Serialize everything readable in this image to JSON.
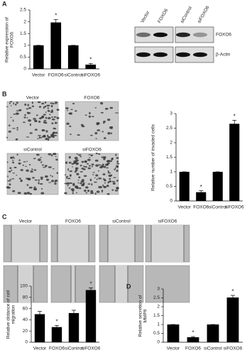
{
  "chart_data": [
    {
      "type": "bar",
      "panel": "A",
      "y_label": "Relative expression of FOXO6",
      "categories": [
        "Vector",
        "FOXO6",
        "siControl",
        "siFOXO6"
      ],
      "values": [
        1,
        1.97,
        1,
        0.18
      ],
      "errors": [
        0,
        0.12,
        0,
        0.05
      ],
      "markers": [
        {
          "index": 1,
          "label": "*"
        },
        {
          "index": 3,
          "label": "*"
        }
      ],
      "color": "#000000",
      "ylim": [
        0,
        2.5
      ],
      "yticks": [
        0,
        0.5,
        1,
        1.5,
        2,
        2.5
      ]
    },
    {
      "type": "bar",
      "panel": "B",
      "y_label": "Relative number of invaded cells",
      "categories": [
        "Vector",
        "FOXO6",
        "siControl",
        "siFOXO6"
      ],
      "values": [
        1,
        0.3,
        1,
        2.65
      ],
      "errors": [
        0,
        0.05,
        0,
        0.12
      ],
      "markers": [
        {
          "index": 1,
          "label": "*"
        },
        {
          "index": 3,
          "label": "*"
        }
      ],
      "color": "#000000",
      "ylim": [
        0,
        3
      ],
      "yticks": [
        0,
        0.5,
        1,
        1.5,
        2,
        2.5,
        3
      ]
    },
    {
      "type": "bar",
      "panel": "C",
      "y_label": "Relative distance of cell migration",
      "categories": [
        "Vector",
        "FOXO6",
        "siControl",
        "siFOXO6"
      ],
      "values": [
        50,
        27,
        52,
        93
      ],
      "errors": [
        5,
        3,
        5,
        4
      ],
      "markers": [
        {
          "index": 1,
          "label": "*"
        },
        {
          "index": 3,
          "label": "*"
        }
      ],
      "color": "#000000",
      "ylim": [
        0,
        100
      ],
      "yticks": [
        0,
        20,
        40,
        60,
        80,
        100
      ]
    },
    {
      "type": "bar",
      "panel": "D",
      "y_label": "Relative secretion of MMP9",
      "categories": [
        "Vector",
        "FOXO6",
        "siControl",
        "siFOXO6"
      ],
      "values": [
        1,
        0.28,
        1,
        2.52
      ],
      "errors": [
        0,
        0.04,
        0,
        0.12
      ],
      "markers": [
        {
          "index": 1,
          "label": "*"
        },
        {
          "index": 3,
          "label": "*"
        }
      ],
      "color": "#000000",
      "ylim": [
        0,
        3
      ],
      "yticks": [
        0,
        0.5,
        1,
        1.5,
        2,
        2.5,
        3
      ]
    }
  ],
  "blot": {
    "lanes": [
      "Vector",
      "FOXO6",
      "siControl",
      "siFOXO6"
    ],
    "rows": [
      "FOXO6",
      "β-Actin"
    ]
  },
  "micrographs": [
    "Vector",
    "FOXO6",
    "siControl",
    "siFOXO6"
  ],
  "wound_images": [
    "Vector",
    "FOXO6",
    "siControl",
    "siFOXO6"
  ]
}
